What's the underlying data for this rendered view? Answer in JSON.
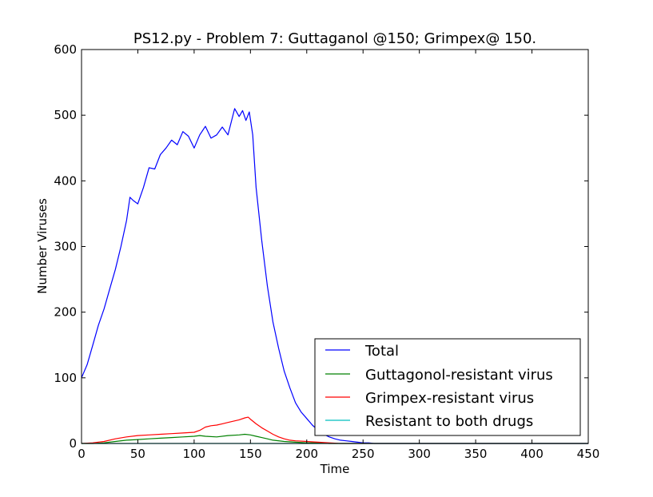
{
  "chart_data": {
    "type": "line",
    "title": "PS12.py - Problem 7: Guttaganol @150; Grimpex@ 150.",
    "xlabel": "Time",
    "ylabel": "Number Viruses",
    "xlim": [
      0,
      450
    ],
    "ylim": [
      0,
      600
    ],
    "xticks": [
      0,
      50,
      100,
      150,
      200,
      250,
      300,
      350,
      400,
      450
    ],
    "yticks": [
      0,
      100,
      200,
      300,
      400,
      500,
      600
    ],
    "xtick_labels": [
      "0",
      "50",
      "100",
      "150",
      "200",
      "250",
      "300",
      "350",
      "400",
      "450"
    ],
    "ytick_labels": [
      "0",
      "100",
      "200",
      "300",
      "400",
      "500",
      "600"
    ],
    "grid": false,
    "legend_position": "lower-right",
    "series": [
      {
        "name": "Total",
        "color": "#0000ff",
        "points": [
          [
            0,
            100
          ],
          [
            5,
            120
          ],
          [
            10,
            150
          ],
          [
            15,
            180
          ],
          [
            20,
            205
          ],
          [
            25,
            235
          ],
          [
            30,
            265
          ],
          [
            35,
            300
          ],
          [
            40,
            340
          ],
          [
            43,
            375
          ],
          [
            46,
            370
          ],
          [
            50,
            365
          ],
          [
            55,
            390
          ],
          [
            60,
            420
          ],
          [
            65,
            418
          ],
          [
            70,
            440
          ],
          [
            75,
            450
          ],
          [
            80,
            462
          ],
          [
            85,
            455
          ],
          [
            90,
            475
          ],
          [
            95,
            468
          ],
          [
            100,
            450
          ],
          [
            105,
            470
          ],
          [
            110,
            483
          ],
          [
            115,
            465
          ],
          [
            120,
            470
          ],
          [
            125,
            482
          ],
          [
            130,
            470
          ],
          [
            133,
            490
          ],
          [
            136,
            510
          ],
          [
            140,
            498
          ],
          [
            143,
            507
          ],
          [
            146,
            492
          ],
          [
            149,
            505
          ],
          [
            152,
            470
          ],
          [
            155,
            390
          ],
          [
            160,
            310
          ],
          [
            165,
            240
          ],
          [
            170,
            185
          ],
          [
            175,
            145
          ],
          [
            180,
            110
          ],
          [
            185,
            85
          ],
          [
            190,
            62
          ],
          [
            195,
            48
          ],
          [
            200,
            38
          ],
          [
            205,
            28
          ],
          [
            210,
            20
          ],
          [
            215,
            14
          ],
          [
            220,
            10
          ],
          [
            225,
            7
          ],
          [
            230,
            5
          ],
          [
            235,
            4
          ],
          [
            240,
            3
          ],
          [
            245,
            2
          ],
          [
            250,
            1
          ],
          [
            255,
            1
          ],
          [
            260,
            0
          ],
          [
            450,
            0
          ]
        ]
      },
      {
        "name": "Guttagonol-resistant virus",
        "color": "#008000",
        "points": [
          [
            0,
            0
          ],
          [
            10,
            0
          ],
          [
            20,
            1
          ],
          [
            30,
            3
          ],
          [
            40,
            5
          ],
          [
            50,
            6
          ],
          [
            60,
            7
          ],
          [
            70,
            8
          ],
          [
            80,
            9
          ],
          [
            90,
            10
          ],
          [
            100,
            11
          ],
          [
            105,
            12
          ],
          [
            110,
            11
          ],
          [
            120,
            10
          ],
          [
            130,
            12
          ],
          [
            140,
            13
          ],
          [
            145,
            14
          ],
          [
            150,
            13
          ],
          [
            155,
            11
          ],
          [
            160,
            9
          ],
          [
            165,
            7
          ],
          [
            170,
            5
          ],
          [
            180,
            3
          ],
          [
            190,
            2
          ],
          [
            200,
            1
          ],
          [
            210,
            1
          ],
          [
            220,
            0
          ],
          [
            450,
            0
          ]
        ]
      },
      {
        "name": "Grimpex-resistant virus",
        "color": "#ff0000",
        "points": [
          [
            0,
            0
          ],
          [
            10,
            1
          ],
          [
            20,
            3
          ],
          [
            30,
            7
          ],
          [
            40,
            10
          ],
          [
            50,
            12
          ],
          [
            60,
            13
          ],
          [
            70,
            14
          ],
          [
            80,
            15
          ],
          [
            90,
            16
          ],
          [
            100,
            17
          ],
          [
            105,
            20
          ],
          [
            110,
            25
          ],
          [
            115,
            27
          ],
          [
            120,
            28
          ],
          [
            125,
            30
          ],
          [
            130,
            32
          ],
          [
            135,
            34
          ],
          [
            140,
            36
          ],
          [
            145,
            39
          ],
          [
            148,
            40
          ],
          [
            150,
            37
          ],
          [
            155,
            30
          ],
          [
            160,
            24
          ],
          [
            165,
            19
          ],
          [
            170,
            14
          ],
          [
            175,
            10
          ],
          [
            180,
            7
          ],
          [
            185,
            5
          ],
          [
            190,
            4
          ],
          [
            200,
            3
          ],
          [
            210,
            2
          ],
          [
            220,
            1
          ],
          [
            230,
            0
          ],
          [
            450,
            0
          ]
        ]
      },
      {
        "name": "Resistant to both drugs",
        "color": "#00bfbf",
        "points": [
          [
            0,
            0
          ],
          [
            450,
            0
          ]
        ]
      }
    ]
  }
}
